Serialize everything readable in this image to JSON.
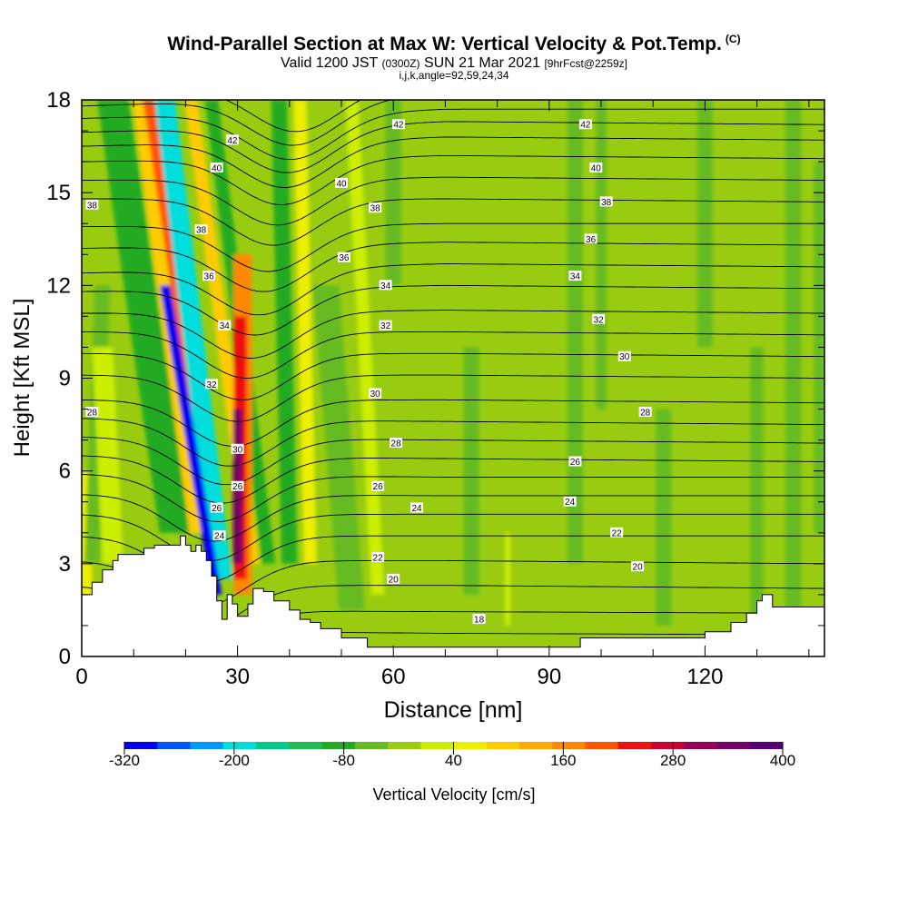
{
  "header": {
    "title": "Wind-Parallel Section at Max W: Vertical Velocity & Pot.Temp.",
    "copyright": "(C)",
    "valid_prefix": "Valid 1200 JST",
    "valid_utc": "(0300Z)",
    "valid_date": "SUN 21 Mar 2021",
    "forecast": "[9hrFcst@2259z]",
    "indices": "i,j,k,angle=92,59,24,34"
  },
  "chart_data": {
    "type": "heatmap",
    "xlabel": "Distance [nm]",
    "ylabel": "Height [Kft MSL]",
    "xlim": [
      0,
      143
    ],
    "ylim": [
      0,
      18
    ],
    "x_ticks": [
      0,
      30,
      60,
      90,
      120
    ],
    "y_ticks": [
      0,
      3,
      6,
      9,
      12,
      15,
      18
    ],
    "colorbar": {
      "label": "Vertical Velocity [cm/s]",
      "min": -320,
      "max": 400,
      "step": 40,
      "tick_labels": [
        "-320",
        "-200",
        "-80",
        "40",
        "160",
        "280",
        "400"
      ],
      "tick_values": [
        -320,
        -200,
        -80,
        40,
        160,
        280,
        400
      ],
      "colors": [
        "#0000ee",
        "#0055ff",
        "#0099ff",
        "#00dddd",
        "#00cc88",
        "#22bb55",
        "#22aa22",
        "#66bb22",
        "#99cc11",
        "#ccee00",
        "#eeee00",
        "#ffcc00",
        "#ffaa00",
        "#ff8800",
        "#ff5500",
        "#ee1111",
        "#cc0033",
        "#990055",
        "#770066",
        "#550077"
      ]
    },
    "background_velocity_cm_s": 30,
    "velocity_bands": [
      {
        "x_bottom": 0.5,
        "x_top": 0.5,
        "width": 3,
        "z_bottom": 1,
        "z_top": 6,
        "w": 100
      },
      {
        "x_bottom": 2,
        "x_top": 4,
        "width": 3,
        "z_bottom": 3,
        "z_top": 12,
        "w": -40
      },
      {
        "x_bottom": 6,
        "x_top": 4,
        "width": 4,
        "z_bottom": 3,
        "z_top": 10,
        "w": 60
      },
      {
        "x_bottom": 18,
        "x_top": 6,
        "width": 6,
        "z_bottom": 4,
        "z_top": 18,
        "w": -80
      },
      {
        "x_bottom": 22,
        "x_top": 11,
        "width": 2.5,
        "z_bottom": 4,
        "z_top": 18,
        "w": 140
      },
      {
        "x_bottom": 26,
        "x_top": 13,
        "width": 2.5,
        "z_bottom": 3.5,
        "z_top": 18,
        "w": 260
      },
      {
        "x_bottom": 27,
        "x_top": 16,
        "width": 4,
        "z_bottom": 2.5,
        "z_top": 18,
        "w": -200
      },
      {
        "x_bottom": 26,
        "x_top": 16,
        "width": 2,
        "z_bottom": 2,
        "z_top": 12,
        "w": -300
      },
      {
        "x_bottom": 33,
        "x_top": 21,
        "width": 2.5,
        "z_bottom": 3,
        "z_top": 18,
        "w": 120
      },
      {
        "x_bottom": 36,
        "x_top": 25,
        "width": 2.5,
        "z_bottom": 3,
        "z_top": 18,
        "w": -80
      },
      {
        "x_bottom": 31,
        "x_top": 31,
        "width": 3.5,
        "z_bottom": 2,
        "z_top": 13,
        "w": 200
      },
      {
        "x_bottom": 30.5,
        "x_top": 30.5,
        "width": 2.5,
        "z_bottom": 2.5,
        "z_top": 11,
        "w": 280
      },
      {
        "x_bottom": 30,
        "x_top": 30,
        "width": 1.8,
        "z_bottom": 3,
        "z_top": 8,
        "w": 400
      },
      {
        "x_bottom": 40,
        "x_top": 38,
        "width": 3,
        "z_bottom": 3,
        "z_top": 18,
        "w": -80
      },
      {
        "x_bottom": 44,
        "x_top": 42,
        "width": 2.5,
        "z_bottom": 3,
        "z_top": 18,
        "w": 80
      },
      {
        "x_bottom": 52,
        "x_top": 47,
        "width": 5,
        "z_bottom": 1.5,
        "z_top": 12,
        "w": -40
      },
      {
        "x_bottom": 57,
        "x_top": 52,
        "width": 2.5,
        "z_bottom": 2,
        "z_top": 18,
        "w": 60
      },
      {
        "x_bottom": 60,
        "x_top": 60,
        "width": 3,
        "z_bottom": 12,
        "z_top": 18,
        "w": -20
      },
      {
        "x_bottom": 75,
        "x_top": 75,
        "width": 3,
        "z_bottom": 2,
        "z_top": 10,
        "w": -20
      },
      {
        "x_bottom": 82,
        "x_top": 82,
        "width": 1,
        "z_bottom": 1,
        "z_top": 4,
        "w": 60
      },
      {
        "x_bottom": 95,
        "x_top": 95,
        "width": 3,
        "z_bottom": 3,
        "z_top": 18,
        "w": -20
      },
      {
        "x_bottom": 100,
        "x_top": 100,
        "width": 2,
        "z_bottom": 8,
        "z_top": 18,
        "w": -20
      },
      {
        "x_bottom": 112,
        "x_top": 112,
        "width": 3,
        "z_bottom": 1,
        "z_top": 8,
        "w": -20
      },
      {
        "x_bottom": 120,
        "x_top": 120,
        "width": 3,
        "z_bottom": 10,
        "z_top": 18,
        "w": -20
      },
      {
        "x_bottom": 130,
        "x_top": 130,
        "width": 2.5,
        "z_bottom": 1,
        "z_top": 10,
        "w": -20
      },
      {
        "x_bottom": 137,
        "x_top": 137,
        "width": 3,
        "z_bottom": 1,
        "z_top": 18,
        "w": -20
      },
      {
        "x_bottom": 142,
        "x_top": 142,
        "width": 2,
        "z_bottom": 4,
        "z_top": 16,
        "w": -20
      }
    ],
    "terrain": {
      "distance_nm": [
        0,
        2,
        4,
        6,
        7,
        10,
        12,
        14,
        18,
        19,
        20,
        21,
        22,
        23,
        24,
        25,
        26,
        27,
        28,
        29,
        30,
        31,
        32,
        33,
        35,
        37,
        40,
        42,
        44,
        46,
        50,
        55,
        60,
        70,
        80,
        90,
        96,
        100,
        110,
        115,
        118,
        120,
        125,
        128,
        130,
        131,
        133,
        135,
        138,
        143
      ],
      "height_kft": [
        2,
        2.4,
        2.8,
        3.1,
        3.3,
        3.3,
        3.5,
        3.6,
        3.6,
        3.9,
        3.6,
        3.4,
        3.6,
        3.4,
        3.1,
        2.6,
        1.8,
        1.2,
        2.0,
        1.7,
        1.3,
        1.3,
        1.7,
        2.2,
        2.1,
        1.8,
        1.5,
        1.2,
        1.1,
        0.9,
        0.6,
        0.3,
        0.3,
        0.3,
        0.3,
        0.3,
        0.6,
        0.6,
        0.6,
        0.6,
        0.6,
        0.8,
        1.1,
        1.4,
        1.8,
        2.0,
        1.6,
        1.6,
        1.6,
        1.6
      ]
    },
    "theta_contours": {
      "spacing_k": 1,
      "levels_k": [
        16,
        17,
        18,
        19,
        20,
        21,
        22,
        23,
        24,
        25,
        26,
        27,
        28,
        29,
        30,
        31,
        32,
        33,
        34,
        35,
        36,
        37,
        38,
        39,
        40,
        41,
        42,
        43,
        44,
        45
      ],
      "profile_distance_nm": [
        0,
        70,
        143
      ],
      "profile_heights_kft": [
        [
          0.0,
          0.0,
          0.0
        ],
        [
          0.3,
          0.2,
          0.2
        ],
        [
          0.85,
          0.75,
          0.7
        ],
        [
          1.5,
          1.45,
          1.4
        ],
        [
          2.3,
          2.3,
          2.2
        ],
        [
          3.1,
          3.1,
          3.0
        ],
        [
          3.9,
          3.9,
          3.9
        ],
        [
          4.6,
          4.6,
          4.6
        ],
        [
          5.25,
          5.2,
          5.2
        ],
        [
          5.9,
          5.8,
          5.8
        ],
        [
          6.5,
          6.4,
          6.3
        ],
        [
          7.1,
          7.0,
          6.9
        ],
        [
          7.7,
          7.6,
          7.5
        ],
        [
          8.3,
          8.3,
          8.2
        ],
        [
          9.1,
          9.1,
          9.0
        ],
        [
          9.8,
          9.8,
          9.7
        ],
        [
          10.5,
          10.5,
          10.4
        ],
        [
          11.1,
          11.2,
          11.1
        ],
        [
          11.8,
          12.0,
          11.9
        ],
        [
          12.4,
          12.7,
          12.6
        ],
        [
          13.2,
          13.4,
          13.3
        ],
        [
          13.9,
          14.0,
          14.0
        ],
        [
          14.8,
          14.8,
          14.7
        ],
        [
          15.4,
          15.5,
          15.4
        ],
        [
          16.0,
          16.2,
          16.1
        ],
        [
          16.5,
          16.8,
          16.7
        ],
        [
          16.95,
          17.3,
          17.2
        ],
        [
          17.4,
          17.7,
          17.7
        ],
        [
          17.8,
          18.2,
          18.1
        ],
        [
          18.3,
          18.6,
          18.6
        ]
      ],
      "wave": {
        "center_nm": 24,
        "sigma_nm": 12,
        "amplitude_kft": 1.5,
        "tilt_nm_per_kft": 1.2
      },
      "labels": [
        {
          "text": "42",
          "x": 61,
          "z": 17.2
        },
        {
          "text": "42",
          "x": 97,
          "z": 17.2
        },
        {
          "text": "42",
          "x": 29,
          "z": 16.7
        },
        {
          "text": "40",
          "x": 26,
          "z": 15.8
        },
        {
          "text": "40",
          "x": 50,
          "z": 15.3
        },
        {
          "text": "40",
          "x": 99,
          "z": 15.8
        },
        {
          "text": "38",
          "x": 2,
          "z": 14.6
        },
        {
          "text": "38",
          "x": 56.5,
          "z": 14.5
        },
        {
          "text": "38",
          "x": 101,
          "z": 14.7
        },
        {
          "text": "38",
          "x": 23,
          "z": 13.8
        },
        {
          "text": "36",
          "x": 98,
          "z": 13.5
        },
        {
          "text": "36",
          "x": 50.5,
          "z": 12.9
        },
        {
          "text": "36",
          "x": 24.5,
          "z": 12.3
        },
        {
          "text": "34",
          "x": 58.5,
          "z": 12.0
        },
        {
          "text": "34",
          "x": 95,
          "z": 12.3
        },
        {
          "text": "34",
          "x": 27.5,
          "z": 10.7
        },
        {
          "text": "32",
          "x": 58.5,
          "z": 10.7
        },
        {
          "text": "32",
          "x": 99.5,
          "z": 10.9
        },
        {
          "text": "32",
          "x": 25,
          "z": 8.8
        },
        {
          "text": "30",
          "x": 104.5,
          "z": 9.7
        },
        {
          "text": "30",
          "x": 56.5,
          "z": 8.5
        },
        {
          "text": "30",
          "x": 30,
          "z": 6.7
        },
        {
          "text": "28",
          "x": 2,
          "z": 7.9
        },
        {
          "text": "28",
          "x": 108.5,
          "z": 7.9
        },
        {
          "text": "28",
          "x": 60.5,
          "z": 6.9
        },
        {
          "text": "26",
          "x": 95,
          "z": 6.3
        },
        {
          "text": "26",
          "x": 57,
          "z": 5.5
        },
        {
          "text": "26",
          "x": 30,
          "z": 5.5
        },
        {
          "text": "24",
          "x": 64.5,
          "z": 4.8
        },
        {
          "text": "24",
          "x": 94,
          "z": 5.0
        },
        {
          "text": "26",
          "x": 26,
          "z": 4.8
        },
        {
          "text": "24",
          "x": 26.5,
          "z": 3.9
        },
        {
          "text": "22",
          "x": 103,
          "z": 4.0
        },
        {
          "text": "22",
          "x": 57,
          "z": 3.2
        },
        {
          "text": "20",
          "x": 107,
          "z": 2.9
        },
        {
          "text": "20",
          "x": 60,
          "z": 2.5
        },
        {
          "text": "18",
          "x": 76.5,
          "z": 1.2
        }
      ]
    }
  }
}
